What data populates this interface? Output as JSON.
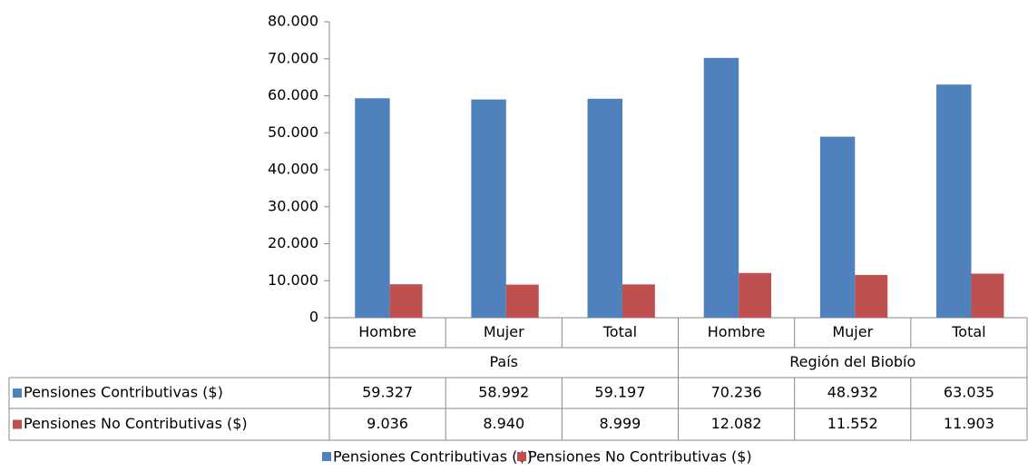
{
  "chart_data": {
    "type": "bar",
    "categories": [
      "Hombre",
      "Mujer",
      "Total",
      "Hombre",
      "Mujer",
      "Total"
    ],
    "groups": [
      "País",
      "Región del Biobío"
    ],
    "series": [
      {
        "name": "Pensiones Contributivas ($)",
        "color": "#4f81bd",
        "values": [
          59327,
          58992,
          59197,
          70236,
          48932,
          63035
        ],
        "value_labels": [
          "59.327",
          "58.992",
          "59.197",
          "70.236",
          "48.932",
          "63.035"
        ]
      },
      {
        "name": "Pensiones No Contributivas ($)",
        "color": "#c0504d",
        "values": [
          9036,
          8940,
          8999,
          12082,
          11552,
          11903
        ],
        "value_labels": [
          "9.036",
          "8.940",
          "8.999",
          "12.082",
          "11.552",
          "11.903"
        ]
      }
    ],
    "ylim": [
      0,
      80000
    ],
    "yticks": [
      0,
      {
        "value": 10000,
        "label": "10.000"
      },
      {
        "value": 20000,
        "label": "20.000"
      },
      {
        "value": 30000,
        "label": "30.000"
      },
      {
        "value": 40000,
        "label": "40.000"
      },
      {
        "value": 50000,
        "label": "50.000"
      },
      {
        "value": 60000,
        "label": "60.000"
      },
      {
        "value": 70000,
        "label": "70.000"
      },
      {
        "value": 80000,
        "label": "80.000"
      }
    ],
    "grid": false,
    "legend": "bottom"
  }
}
